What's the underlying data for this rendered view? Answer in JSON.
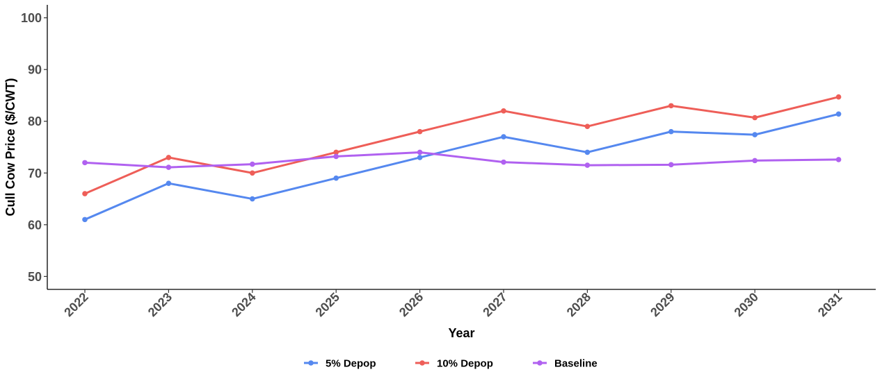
{
  "chart_data": {
    "type": "line",
    "x": [
      "2022",
      "2023",
      "2024",
      "2025",
      "2026",
      "2027",
      "2028",
      "2029",
      "2030",
      "2031"
    ],
    "series": [
      {
        "name": "5% Depop",
        "color": "#5588ef",
        "values": [
          61,
          68,
          65,
          69,
          73,
          77,
          74,
          78,
          77.4,
          81.4
        ]
      },
      {
        "name": "10% Depop",
        "color": "#ee5e58",
        "values": [
          66,
          73,
          70,
          74,
          78,
          82,
          79,
          83,
          80.7,
          84.7
        ]
      },
      {
        "name": "Baseline",
        "color": "#b061f0",
        "values": [
          72,
          71.1,
          71.7,
          73.2,
          74,
          72.1,
          71.5,
          71.6,
          72.4,
          72.6
        ]
      }
    ],
    "title": "",
    "xlabel": "Year",
    "ylabel": "Cull Cow Price ($/CWT)",
    "ylim": [
      47.5,
      102.5
    ],
    "yticks": [
      50,
      60,
      70,
      80,
      90,
      100
    ],
    "grid": false,
    "legend_position": "bottom"
  }
}
